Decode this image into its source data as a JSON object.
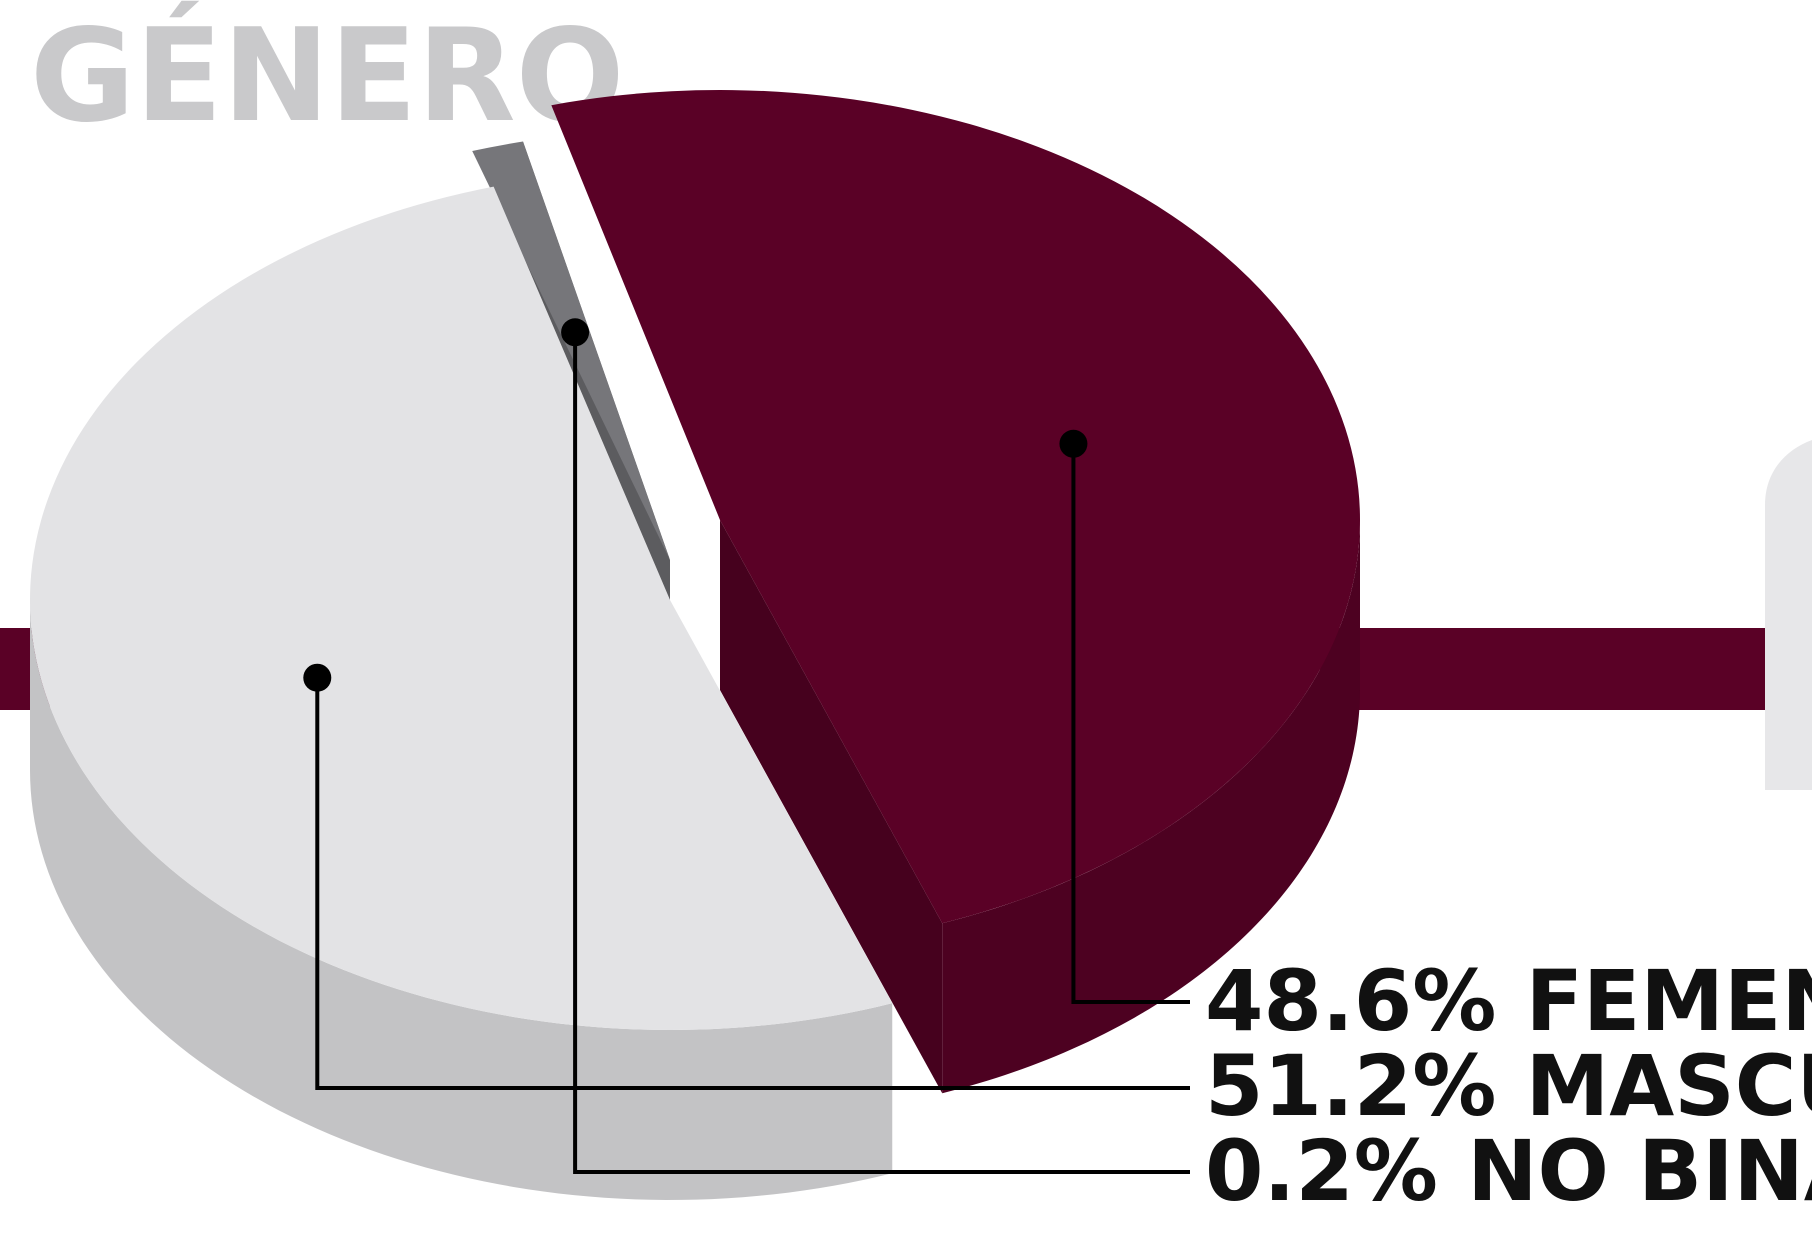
{
  "chart_data": {
    "type": "pie",
    "title": "GÉNERO",
    "slices": [
      {
        "label": "FEMENINA",
        "value": 48.6,
        "value_text": "48.6%",
        "color": "#5a0126"
      },
      {
        "label": "MASCULINO",
        "value": 51.2,
        "value_text": "51.2%",
        "color": "#e3e3e5"
      },
      {
        "label": "NO BINARIO",
        "value": 0.2,
        "value_text": "0.2%",
        "color": "#76767a"
      }
    ],
    "style": "3d-exploded-pie",
    "accent_band_color": "#5a0126"
  }
}
